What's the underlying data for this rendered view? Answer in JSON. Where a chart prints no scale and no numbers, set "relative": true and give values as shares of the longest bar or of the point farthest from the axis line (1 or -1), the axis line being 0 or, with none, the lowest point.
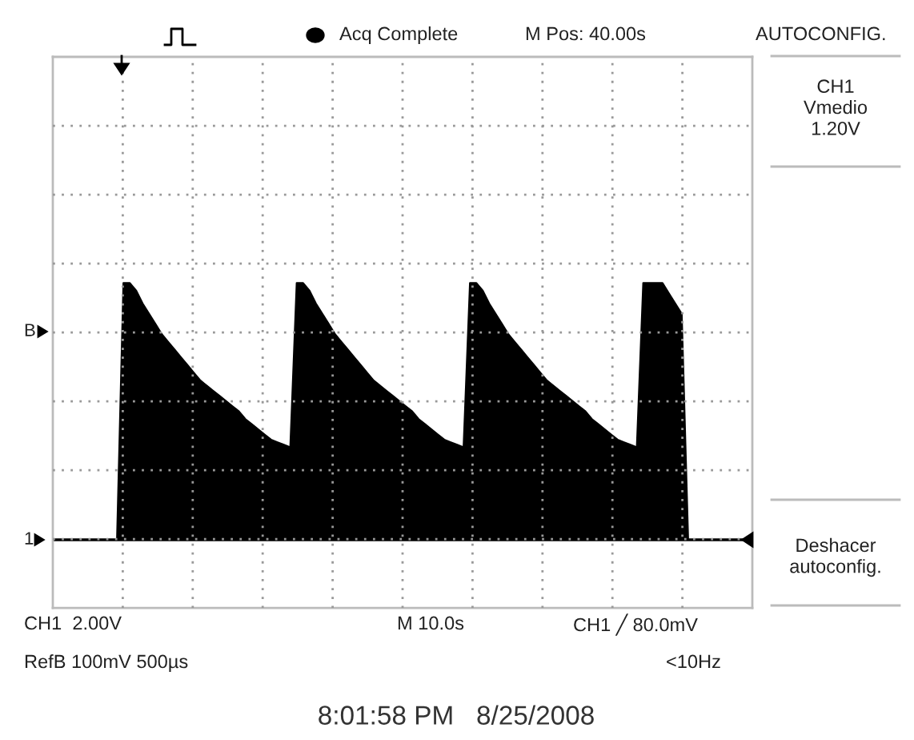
{
  "chart_data": {
    "type": "area",
    "relative": true,
    "grid": true,
    "categories": [
      null,
      null,
      null,
      null,
      null,
      null,
      null,
      null,
      null,
      null,
      null,
      null,
      null,
      null,
      null,
      null,
      null,
      null,
      null,
      null,
      null,
      null,
      null,
      null,
      null,
      null,
      null,
      null,
      null,
      null,
      null,
      null,
      null,
      null,
      null,
      null,
      null,
      null,
      null,
      null,
      null,
      null,
      null,
      null,
      null,
      null,
      null,
      null,
      null,
      null,
      null,
      null,
      null,
      null,
      null,
      null,
      null,
      null,
      null,
      null,
      null,
      null,
      null,
      null,
      null,
      null,
      null,
      null,
      null,
      null,
      null,
      null,
      null,
      null,
      null,
      null,
      null,
      null,
      null,
      null,
      null,
      null,
      null,
      null,
      null,
      null,
      null,
      null,
      null,
      null,
      null,
      null,
      null,
      null,
      null,
      null,
      null,
      null,
      null,
      null,
      null,
      null,
      null,
      null,
      null,
      null,
      null,
      null,
      null,
      null
    ],
    "series": [
      {
        "color": "#000000",
        "values": [
          0,
          0,
          0,
          0,
          0,
          0,
          0,
          0,
          0,
          0,
          0,
          1,
          1,
          0.97,
          0.92,
          0.88,
          0.84,
          0.8,
          0.77,
          0.74,
          0.71,
          0.68,
          0.65,
          0.62,
          0.6,
          0.58,
          0.56,
          0.54,
          0.52,
          0.5,
          0.47,
          0.45,
          0.43,
          0.41,
          0.39,
          0.38,
          0.37,
          0.36,
          1,
          1,
          0.97,
          0.92,
          0.88,
          0.84,
          0.8,
          0.77,
          0.74,
          0.71,
          0.68,
          0.65,
          0.62,
          0.6,
          0.58,
          0.56,
          0.54,
          0.52,
          0.5,
          0.47,
          0.45,
          0.43,
          0.41,
          0.39,
          0.38,
          0.37,
          0.36,
          1,
          1,
          0.97,
          0.92,
          0.88,
          0.84,
          0.8,
          0.77,
          0.74,
          0.71,
          0.68,
          0.65,
          0.62,
          0.6,
          0.58,
          0.56,
          0.54,
          0.52,
          0.5,
          0.47,
          0.45,
          0.43,
          0.41,
          0.39,
          0.38,
          0.37,
          0.36,
          1,
          1,
          1,
          1,
          0.96,
          0.92,
          0.88,
          0,
          0,
          0,
          0,
          0,
          0,
          0,
          0,
          0,
          0,
          0
        ]
      }
    ],
    "annotations": [
      "Acq Complete",
      "M Pos: 40.00s",
      "AUTOCONFIG.",
      "CH1\nVmedio\n1.20V",
      "Deshacer\nautoconfig.",
      "CH1  2.00V",
      "M 10.0s",
      "CH1 ╱ 80.0mV",
      "RefB 100mV 500µs",
      "<10Hz",
      "8:01:58 PM   8/25/2008",
      "B",
      "1"
    ]
  }
}
